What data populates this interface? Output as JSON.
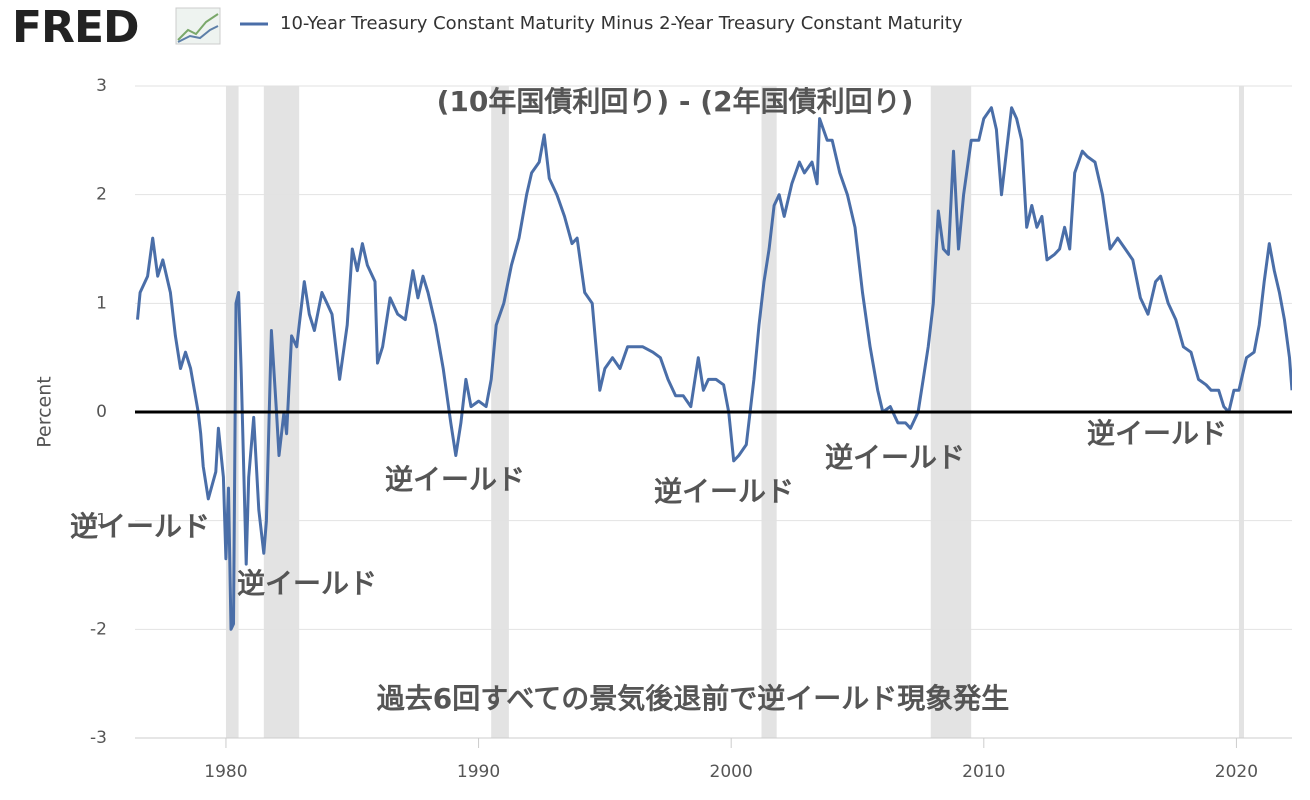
{
  "brand": "FRED",
  "chart_data": {
    "type": "line",
    "ylabel": "Percent",
    "title": "(10年国債利回り) - (2年国債利回り)",
    "note": "過去6回すべての景気後退前で逆イールド現象発生",
    "annotations": [
      "逆イールド",
      "逆イールド",
      "逆イールド",
      "逆イールド",
      "逆イールド",
      "逆イールド"
    ],
    "xlim": [
      1976.4,
      2022.2
    ],
    "ylim": [
      -3,
      3
    ],
    "xticks": [
      1980,
      1990,
      2000,
      2010,
      2020
    ],
    "yticks": [
      -3,
      -2,
      -1,
      0,
      1,
      2,
      3
    ],
    "grid": true,
    "hline": 0,
    "recessions": [
      [
        1980.0,
        1980.5
      ],
      [
        1981.5,
        1982.9
      ],
      [
        1990.5,
        1991.2
      ],
      [
        2001.2,
        2001.8
      ],
      [
        2007.9,
        2009.5
      ],
      [
        2020.1,
        2020.3
      ]
    ],
    "x": [
      1976.5,
      1976.6,
      1976.9,
      1977.1,
      1977.3,
      1977.5,
      1977.8,
      1978.0,
      1978.2,
      1978.4,
      1978.6,
      1978.9,
      1979.0,
      1979.1,
      1979.3,
      1979.6,
      1979.7,
      1979.9,
      1980.0,
      1980.1,
      1980.2,
      1980.3,
      1980.4,
      1980.5,
      1980.6,
      1980.8,
      1980.9,
      1981.1,
      1981.3,
      1981.5,
      1981.6,
      1981.8,
      1982.0,
      1982.1,
      1982.3,
      1982.4,
      1982.6,
      1982.8,
      1982.9,
      1983.1,
      1983.3,
      1983.5,
      1983.8,
      1984.0,
      1984.2,
      1984.5,
      1984.8,
      1985.0,
      1985.2,
      1985.4,
      1985.6,
      1985.9,
      1986.0,
      1986.2,
      1986.5,
      1986.8,
      1987.1,
      1987.4,
      1987.6,
      1987.8,
      1988.0,
      1988.3,
      1988.6,
      1988.9,
      1989.1,
      1989.3,
      1989.5,
      1989.7,
      1990.0,
      1990.3,
      1990.5,
      1990.7,
      1991.0,
      1991.3,
      1991.6,
      1991.9,
      1992.1,
      1992.4,
      1992.6,
      1992.8,
      1993.1,
      1993.4,
      1993.7,
      1993.9,
      1994.2,
      1994.5,
      1994.8,
      1995.0,
      1995.3,
      1995.6,
      1995.9,
      1996.2,
      1996.5,
      1996.9,
      1997.2,
      1997.5,
      1997.8,
      1998.1,
      1998.4,
      1998.7,
      1998.9,
      1999.1,
      1999.4,
      1999.7,
      1999.9,
      2000.1,
      2000.3,
      2000.6,
      2000.9,
      2001.1,
      2001.3,
      2001.5,
      2001.7,
      2001.9,
      2002.1,
      2002.4,
      2002.7,
      2002.9,
      2003.2,
      2003.4,
      2003.5,
      2003.8,
      2004.0,
      2004.3,
      2004.6,
      2004.9,
      2005.2,
      2005.5,
      2005.8,
      2006.0,
      2006.3,
      2006.6,
      2006.9,
      2007.1,
      2007.4,
      2007.6,
      2007.8,
      2008.0,
      2008.2,
      2008.4,
      2008.6,
      2008.8,
      2009.0,
      2009.2,
      2009.5,
      2009.8,
      2010.0,
      2010.3,
      2010.5,
      2010.7,
      2010.9,
      2011.1,
      2011.3,
      2011.5,
      2011.7,
      2011.9,
      2012.1,
      2012.3,
      2012.5,
      2012.8,
      2013.0,
      2013.2,
      2013.4,
      2013.6,
      2013.9,
      2014.1,
      2014.4,
      2014.7,
      2015.0,
      2015.3,
      2015.6,
      2015.9,
      2016.2,
      2016.5,
      2016.8,
      2017.0,
      2017.3,
      2017.6,
      2017.9,
      2018.2,
      2018.5,
      2018.8,
      2019.0,
      2019.3,
      2019.5,
      2019.7,
      2019.9,
      2020.1,
      2020.4,
      2020.7,
      2020.9,
      2021.1,
      2021.3,
      2021.5,
      2021.7,
      2021.9,
      2022.1,
      2022.2
    ],
    "series": [
      {
        "name": "10-Year Treasury Constant Maturity Minus 2-Year Treasury Constant Maturity",
        "color": "#4a6ea8",
        "values": [
          0.85,
          1.1,
          1.25,
          1.6,
          1.25,
          1.4,
          1.1,
          0.7,
          0.4,
          0.55,
          0.4,
          0.0,
          -0.2,
          -0.5,
          -0.8,
          -0.55,
          -0.15,
          -0.6,
          -1.35,
          -0.7,
          -2.0,
          -1.95,
          1.0,
          1.1,
          0.4,
          -1.4,
          -0.6,
          -0.05,
          -0.9,
          -1.3,
          -1.0,
          0.75,
          0.0,
          -0.4,
          0.0,
          -0.2,
          0.7,
          0.6,
          0.8,
          1.2,
          0.9,
          0.75,
          1.1,
          1.0,
          0.9,
          0.3,
          0.8,
          1.5,
          1.3,
          1.55,
          1.35,
          1.2,
          0.45,
          0.6,
          1.05,
          0.9,
          0.85,
          1.3,
          1.05,
          1.25,
          1.1,
          0.8,
          0.4,
          -0.1,
          -0.4,
          -0.1,
          0.3,
          0.05,
          0.1,
          0.05,
          0.3,
          0.8,
          1.0,
          1.35,
          1.6,
          2.0,
          2.2,
          2.3,
          2.55,
          2.15,
          2.0,
          1.8,
          1.55,
          1.6,
          1.1,
          1.0,
          0.2,
          0.4,
          0.5,
          0.4,
          0.6,
          0.6,
          0.6,
          0.55,
          0.5,
          0.3,
          0.15,
          0.15,
          0.05,
          0.5,
          0.2,
          0.3,
          0.3,
          0.25,
          0.0,
          -0.45,
          -0.4,
          -0.3,
          0.3,
          0.8,
          1.2,
          1.5,
          1.9,
          2.0,
          1.8,
          2.1,
          2.3,
          2.2,
          2.3,
          2.1,
          2.7,
          2.5,
          2.5,
          2.2,
          2.0,
          1.7,
          1.1,
          0.6,
          0.2,
          0.0,
          0.05,
          -0.1,
          -0.1,
          -0.15,
          0.0,
          0.3,
          0.6,
          1.0,
          1.85,
          1.5,
          1.45,
          2.4,
          1.5,
          2.0,
          2.5,
          2.5,
          2.7,
          2.8,
          2.6,
          2.0,
          2.4,
          2.8,
          2.7,
          2.5,
          1.7,
          1.9,
          1.7,
          1.8,
          1.4,
          1.45,
          1.5,
          1.7,
          1.5,
          2.2,
          2.4,
          2.35,
          2.3,
          2.0,
          1.5,
          1.6,
          1.5,
          1.4,
          1.05,
          0.9,
          1.2,
          1.25,
          1.0,
          0.85,
          0.6,
          0.55,
          0.3,
          0.25,
          0.2,
          0.2,
          0.05,
          0.0,
          0.2,
          0.2,
          0.5,
          0.55,
          0.8,
          1.2,
          1.55,
          1.3,
          1.1,
          0.85,
          0.5,
          0.2
        ]
      }
    ]
  }
}
